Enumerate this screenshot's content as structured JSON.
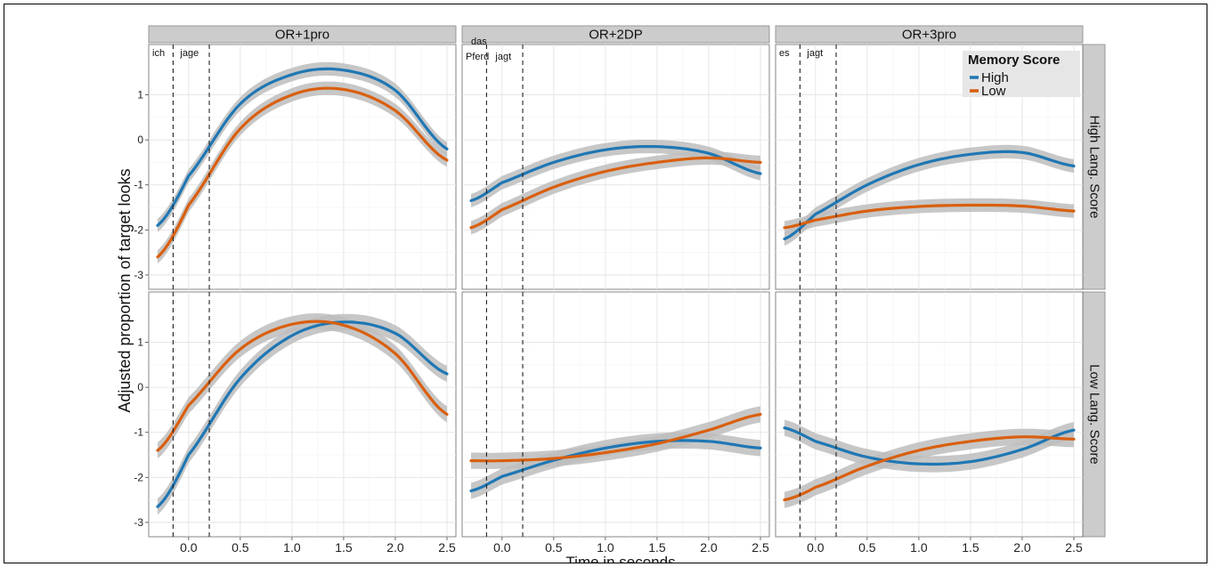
{
  "chart_data": {
    "type": "line",
    "ylabel": "Adjusted proportion of target looks",
    "xlabel": "Time in seconds",
    "xlim": [
      -0.3,
      2.5
    ],
    "x_ticks": [
      "0.0",
      "0.5",
      "1.0",
      "1.5",
      "2.0",
      "2.5"
    ],
    "x_tick_values": [
      0,
      0.5,
      1.0,
      1.5,
      2.0,
      2.5
    ],
    "grid": true,
    "column_strips": [
      "OR+1pro",
      "OR+2DP",
      "OR+3pro"
    ],
    "row_strips": [
      "High Lang. Score",
      "Low Lang. Score"
    ],
    "legend": {
      "title": "Memory Score",
      "placement": "top-right",
      "entries": [
        {
          "name": "High",
          "color": "#1f77b4"
        },
        {
          "name": "Low",
          "color": "#d95f0e"
        }
      ]
    },
    "colors": {
      "High": "#1f77b4",
      "Low": "#d95f0e",
      "ribbon": "#bdbdbd",
      "strip": "#cccccc"
    },
    "x": [
      -0.3,
      0.0,
      0.5,
      1.0,
      1.5,
      2.0,
      2.5
    ],
    "rows": [
      {
        "strip": "High Lang. Score",
        "ylim": [
          -3.2,
          2.0
        ],
        "y_ticks": [
          "1",
          "0",
          "-1",
          "-2",
          "-3"
        ],
        "y_tick_values": [
          1,
          0,
          -1,
          -2,
          -3
        ],
        "panels": [
          {
            "column": "OR+1pro",
            "words": [
              [
                "ich"
              ],
              [
                "jage"
              ]
            ],
            "series": [
              {
                "name": "High",
                "values": [
                  -1.9,
                  -0.8,
                  0.8,
                  1.45,
                  1.55,
                  1.1,
                  -0.2
                ],
                "band": 0.15
              },
              {
                "name": "Low",
                "values": [
                  -2.6,
                  -1.45,
                  0.25,
                  1.0,
                  1.12,
                  0.65,
                  -0.45
                ],
                "band": 0.15
              }
            ]
          },
          {
            "column": "OR+2DP",
            "words": [
              [
                "das",
                "Pferd"
              ],
              [
                "jagt"
              ]
            ],
            "series": [
              {
                "name": "High",
                "values": [
                  -1.35,
                  -0.95,
                  -0.5,
                  -0.22,
                  -0.15,
                  -0.3,
                  -0.75
                ],
                "band": 0.15
              },
              {
                "name": "Low",
                "values": [
                  -1.95,
                  -1.55,
                  -1.05,
                  -0.7,
                  -0.5,
                  -0.4,
                  -0.5
                ],
                "band": 0.15
              }
            ]
          },
          {
            "column": "OR+3pro",
            "words": [
              [
                "es"
              ],
              [
                "jagt"
              ]
            ],
            "series": [
              {
                "name": "High",
                "values": [
                  -2.2,
                  -1.65,
                  -1.0,
                  -0.55,
                  -0.32,
                  -0.28,
                  -0.58
                ],
                "band": 0.15
              },
              {
                "name": "Low",
                "values": [
                  -1.95,
                  -1.78,
                  -1.58,
                  -1.48,
                  -1.45,
                  -1.47,
                  -1.58
                ],
                "band": 0.15
              }
            ]
          }
        ]
      },
      {
        "strip": "Low Lang. Score",
        "ylim": [
          -3.2,
          2.0
        ],
        "y_ticks": [
          "1",
          "0",
          "-1",
          "-2",
          "-3"
        ],
        "y_tick_values": [
          1,
          0,
          -1,
          -2,
          -3
        ],
        "panels": [
          {
            "column": "OR+1pro",
            "words": [
              [],
              []
            ],
            "series": [
              {
                "name": "High",
                "values": [
                  -2.65,
                  -1.5,
                  0.2,
                  1.15,
                  1.45,
                  1.2,
                  0.3
                ],
                "band": 0.18
              },
              {
                "name": "Low",
                "values": [
                  -1.4,
                  -0.4,
                  0.85,
                  1.4,
                  1.38,
                  0.75,
                  -0.6
                ],
                "band": 0.18
              }
            ]
          },
          {
            "column": "OR+2DP",
            "words": [
              [],
              []
            ],
            "series": [
              {
                "name": "High",
                "values": [
                  -2.3,
                  -1.98,
                  -1.62,
                  -1.35,
                  -1.2,
                  -1.2,
                  -1.35
                ],
                "band": 0.18
              },
              {
                "name": "Low",
                "values": [
                  -1.63,
                  -1.63,
                  -1.58,
                  -1.45,
                  -1.25,
                  -0.95,
                  -0.6
                ],
                "band": 0.18
              }
            ]
          },
          {
            "column": "OR+3pro",
            "words": [
              [],
              []
            ],
            "series": [
              {
                "name": "High",
                "values": [
                  -0.9,
                  -1.2,
                  -1.55,
                  -1.7,
                  -1.65,
                  -1.38,
                  -0.95
                ],
                "band": 0.18
              },
              {
                "name": "Low",
                "values": [
                  -2.5,
                  -2.22,
                  -1.75,
                  -1.4,
                  -1.2,
                  -1.1,
                  -1.15
                ],
                "band": 0.18
              }
            ]
          }
        ]
      }
    ],
    "vlines": [
      -0.15,
      0.2
    ]
  }
}
